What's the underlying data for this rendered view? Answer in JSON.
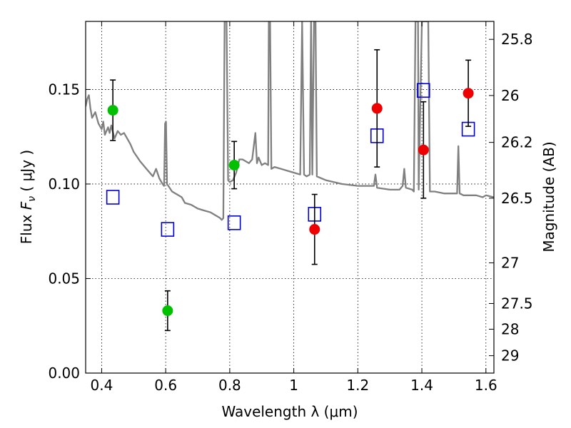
{
  "chart_data": {
    "type": "scatter",
    "title": "",
    "xlabel": "Wavelength  λ (μm)",
    "ylabel": "Flux  F_ν  ( μJy )",
    "y2label": "Magnitude (AB)",
    "xlim": [
      0.35,
      1.625
    ],
    "ylim": [
      0.0,
      0.186
    ],
    "grid": true,
    "x_ticks": [
      0.4,
      0.6,
      0.8,
      1.0,
      1.2,
      1.4,
      1.6
    ],
    "x_tick_labels": [
      "0.4",
      "0.6",
      "0.8",
      "1",
      "1.2",
      "1.4",
      "1.6"
    ],
    "y_ticks": [
      0.0,
      0.05,
      0.1,
      0.15
    ],
    "y_tick_labels": [
      "0.00",
      "0.05",
      "0.10",
      "0.15"
    ],
    "y2_ticks": [
      {
        "label": "25.8",
        "flux": 0.1765
      },
      {
        "label": "26",
        "flux": 0.1468
      },
      {
        "label": "26.2",
        "flux": 0.122
      },
      {
        "label": "26.5",
        "flux": 0.0925
      },
      {
        "label": "27",
        "flux": 0.0583
      },
      {
        "label": "27.5",
        "flux": 0.0368
      },
      {
        "label": "28",
        "flux": 0.0232
      },
      {
        "label": "29",
        "flux": 0.0092
      }
    ],
    "series": [
      {
        "marker": "circle",
        "color": "#00c000",
        "points": [
          {
            "x": 0.435,
            "y": 0.139,
            "err": 0.016
          },
          {
            "x": 0.606,
            "y": 0.033,
            "err": 0.0105
          },
          {
            "x": 0.814,
            "y": 0.11,
            "err": 0.0125
          }
        ]
      },
      {
        "marker": "circle",
        "color": "#ee0000",
        "points": [
          {
            "x": 1.065,
            "y": 0.076,
            "err": 0.0185
          },
          {
            "x": 1.26,
            "y": 0.14,
            "err": 0.031
          },
          {
            "x": 1.405,
            "y": 0.118,
            "err": 0.0255
          },
          {
            "x": 1.545,
            "y": 0.148,
            "err": 0.0175
          }
        ]
      },
      {
        "marker": "square-open",
        "color": "#0000dd",
        "points": [
          {
            "x": 0.435,
            "y": 0.093
          },
          {
            "x": 0.606,
            "y": 0.076
          },
          {
            "x": 0.814,
            "y": 0.0795
          },
          {
            "x": 1.065,
            "y": 0.084
          },
          {
            "x": 1.26,
            "y": 0.1255
          },
          {
            "x": 1.405,
            "y": 0.1495
          },
          {
            "x": 1.545,
            "y": 0.129
          }
        ]
      },
      {
        "type": "line",
        "color": "#808080",
        "points": [
          [
            0.35,
            0.141
          ],
          [
            0.355,
            0.145
          ],
          [
            0.36,
            0.147
          ],
          [
            0.365,
            0.14
          ],
          [
            0.37,
            0.135
          ],
          [
            0.38,
            0.138
          ],
          [
            0.39,
            0.132
          ],
          [
            0.4,
            0.129
          ],
          [
            0.405,
            0.133
          ],
          [
            0.41,
            0.126
          ],
          [
            0.42,
            0.13
          ],
          [
            0.425,
            0.127
          ],
          [
            0.43,
            0.131
          ],
          [
            0.44,
            0.124
          ],
          [
            0.45,
            0.128
          ],
          [
            0.46,
            0.126
          ],
          [
            0.47,
            0.127
          ],
          [
            0.48,
            0.124
          ],
          [
            0.49,
            0.121
          ],
          [
            0.5,
            0.117
          ],
          [
            0.52,
            0.112
          ],
          [
            0.54,
            0.108
          ],
          [
            0.56,
            0.104
          ],
          [
            0.57,
            0.108
          ],
          [
            0.58,
            0.103
          ],
          [
            0.59,
            0.1
          ],
          [
            0.595,
            0.099
          ],
          [
            0.598,
            0.132
          ],
          [
            0.601,
            0.133
          ],
          [
            0.604,
            0.1
          ],
          [
            0.62,
            0.096
          ],
          [
            0.64,
            0.094
          ],
          [
            0.65,
            0.093
          ],
          [
            0.66,
            0.09
          ],
          [
            0.68,
            0.089
          ],
          [
            0.7,
            0.087
          ],
          [
            0.72,
            0.086
          ],
          [
            0.74,
            0.085
          ],
          [
            0.76,
            0.083
          ],
          [
            0.77,
            0.082
          ],
          [
            0.775,
            0.081
          ],
          [
            0.78,
            0.082
          ],
          [
            0.784,
            0.186
          ],
          [
            0.79,
            0.186
          ],
          [
            0.795,
            0.102
          ],
          [
            0.8,
            0.101
          ],
          [
            0.81,
            0.102
          ],
          [
            0.82,
            0.106
          ],
          [
            0.83,
            0.113
          ],
          [
            0.84,
            0.113
          ],
          [
            0.85,
            0.112
          ],
          [
            0.86,
            0.111
          ],
          [
            0.87,
            0.113
          ],
          [
            0.88,
            0.127
          ],
          [
            0.885,
            0.111
          ],
          [
            0.89,
            0.114
          ],
          [
            0.9,
            0.11
          ],
          [
            0.91,
            0.111
          ],
          [
            0.92,
            0.11
          ],
          [
            0.922,
            0.186
          ],
          [
            0.926,
            0.186
          ],
          [
            0.93,
            0.108
          ],
          [
            0.94,
            0.109
          ],
          [
            0.96,
            0.108
          ],
          [
            0.98,
            0.107
          ],
          [
            1.0,
            0.106
          ],
          [
            1.02,
            0.105
          ],
          [
            1.026,
            0.186
          ],
          [
            1.032,
            0.105
          ],
          [
            1.04,
            0.104
          ],
          [
            1.05,
            0.105
          ],
          [
            1.054,
            0.186
          ],
          [
            1.058,
            0.105
          ],
          [
            1.063,
            0.186
          ],
          [
            1.068,
            0.186
          ],
          [
            1.072,
            0.104
          ],
          [
            1.1,
            0.102
          ],
          [
            1.15,
            0.1
          ],
          [
            1.2,
            0.099
          ],
          [
            1.23,
            0.099
          ],
          [
            1.25,
            0.099
          ],
          [
            1.255,
            0.105
          ],
          [
            1.26,
            0.098
          ],
          [
            1.3,
            0.097
          ],
          [
            1.33,
            0.097
          ],
          [
            1.34,
            0.099
          ],
          [
            1.345,
            0.108
          ],
          [
            1.35,
            0.098
          ],
          [
            1.37,
            0.097
          ],
          [
            1.375,
            0.096
          ],
          [
            1.38,
            0.186
          ],
          [
            1.388,
            0.186
          ],
          [
            1.39,
            0.097
          ],
          [
            1.4,
            0.186
          ],
          [
            1.42,
            0.186
          ],
          [
            1.425,
            0.096
          ],
          [
            1.44,
            0.096
          ],
          [
            1.47,
            0.095
          ],
          [
            1.5,
            0.095
          ],
          [
            1.51,
            0.095
          ],
          [
            1.514,
            0.12
          ],
          [
            1.518,
            0.095
          ],
          [
            1.53,
            0.094
          ],
          [
            1.55,
            0.094
          ],
          [
            1.57,
            0.094
          ],
          [
            1.59,
            0.093
          ],
          [
            1.6,
            0.094
          ],
          [
            1.625,
            0.093
          ]
        ]
      }
    ]
  }
}
